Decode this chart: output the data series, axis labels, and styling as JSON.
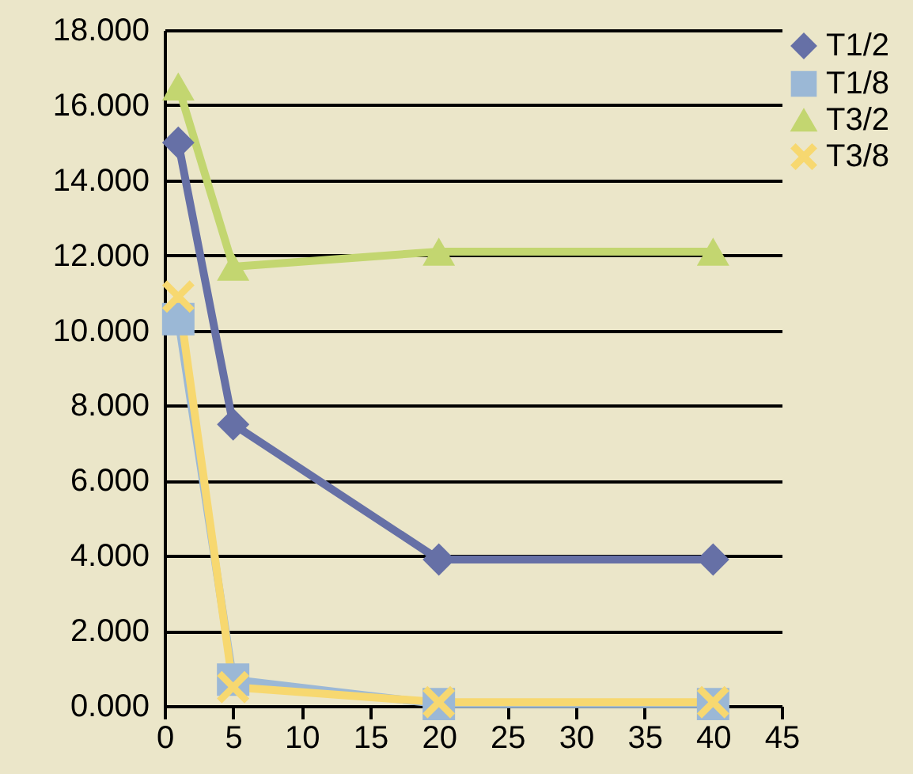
{
  "chart_data": {
    "type": "line",
    "x": [
      1,
      5,
      20,
      40
    ],
    "series": [
      {
        "name": "T1/2",
        "color": "#6670a6",
        "marker": "diamond",
        "values": [
          15.0,
          7.5,
          3.9,
          3.9
        ]
      },
      {
        "name": "T1/8",
        "color": "#9bb8d6",
        "marker": "square",
        "values": [
          10.3,
          0.7,
          0.05,
          0.05
        ]
      },
      {
        "name": "T3/2",
        "color": "#c3d670",
        "marker": "triangle",
        "values": [
          16.5,
          11.7,
          12.1,
          12.1
        ]
      },
      {
        "name": "T3/8",
        "color": "#f7d870",
        "marker": "cross",
        "values": [
          10.9,
          0.5,
          0.1,
          0.1
        ]
      }
    ],
    "xlim": [
      0,
      45
    ],
    "xticks": [
      0,
      5,
      10,
      15,
      20,
      25,
      30,
      35,
      40,
      45
    ],
    "ylim": [
      0,
      18
    ],
    "yticks": [
      {
        "value": 0,
        "label": "0.000"
      },
      {
        "value": 2,
        "label": "2.000"
      },
      {
        "value": 4,
        "label": "4.000"
      },
      {
        "value": 6,
        "label": "6.000"
      },
      {
        "value": 8,
        "label": "8.000"
      },
      {
        "value": 10,
        "label": "10.000"
      },
      {
        "value": 12,
        "label": "12.000"
      },
      {
        "value": 14,
        "label": "14.000"
      },
      {
        "value": 16,
        "label": "16.000"
      },
      {
        "value": 18,
        "label": "18.000"
      }
    ],
    "grid": "y",
    "legend": "right",
    "line_style": "solid"
  }
}
